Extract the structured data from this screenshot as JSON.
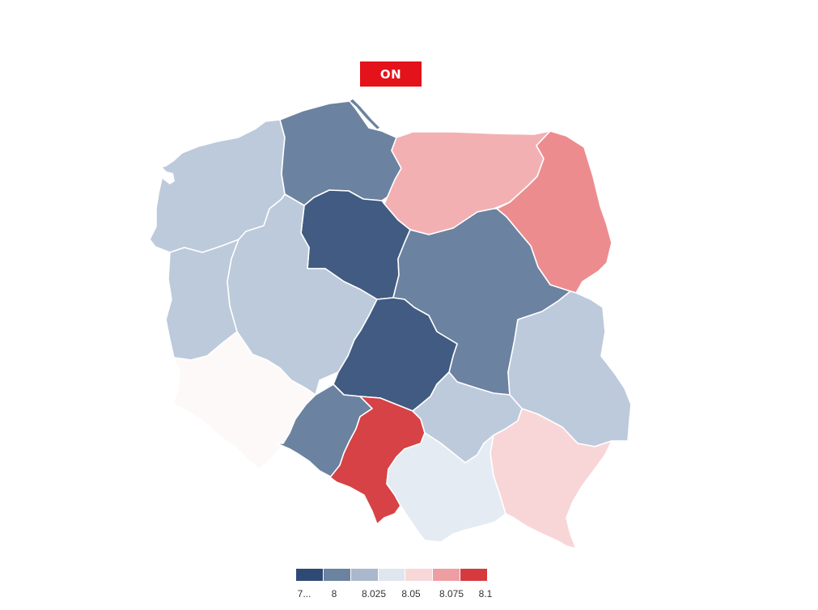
{
  "badge": {
    "label": "ON"
  },
  "map": {
    "regions": [
      {
        "name": "Pomorskie",
        "color": "#6b82a0"
      },
      {
        "name": "Warmińsko-Mazurskie",
        "color": "#f2b0b3"
      },
      {
        "name": "Podlaskie",
        "color": "#ec8c8e"
      },
      {
        "name": "Zachodniopomorskie",
        "color": "#bccadb"
      },
      {
        "name": "Kujawsko-Pomorskie",
        "color": "#415b82"
      },
      {
        "name": "Lubuskie",
        "color": "#bccadb"
      },
      {
        "name": "Wielkopolskie",
        "color": "#bccadb"
      },
      {
        "name": "Mazowieckie",
        "color": "#6b82a0"
      },
      {
        "name": "Łódzkie",
        "color": "#415b82"
      },
      {
        "name": "Lubelskie",
        "color": "#bccadb"
      },
      {
        "name": "Dolnośląskie",
        "color": "#fdf9f9"
      },
      {
        "name": "Opolskie",
        "color": "#6b82a0"
      },
      {
        "name": "Śląskie",
        "color": "#d64245"
      },
      {
        "name": "Świętokrzyskie",
        "color": "#bccadb"
      },
      {
        "name": "Małopolskie",
        "color": "#e5ebf2"
      },
      {
        "name": "Podkarpackie",
        "color": "#f8d6d7"
      }
    ]
  },
  "legend": {
    "colors": [
      "#2e4a74",
      "#6b82a0",
      "#a9b8cc",
      "#dfe6ee",
      "#f8d7d9",
      "#ee9ea2",
      "#d63a3e"
    ],
    "labels": [
      "7...",
      "8",
      "8.025",
      "8.05",
      "8.075",
      "8.1"
    ]
  }
}
